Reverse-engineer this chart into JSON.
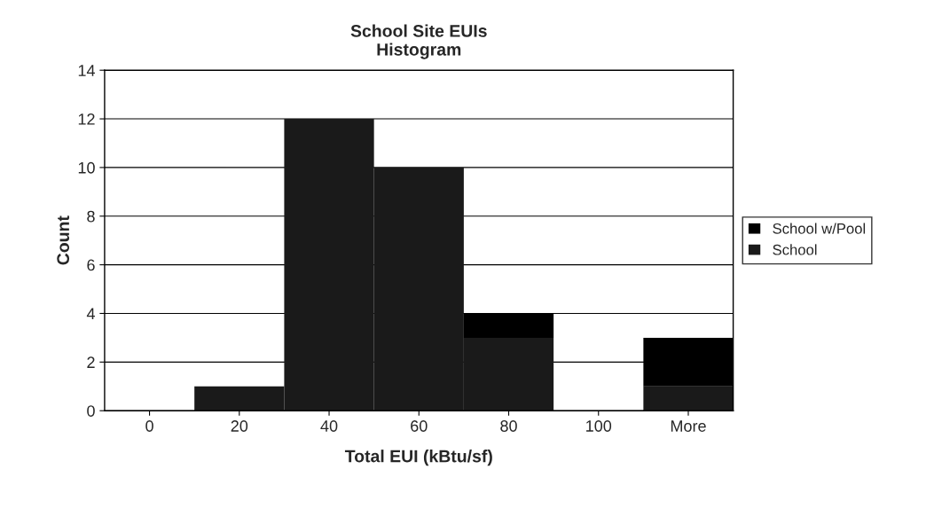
{
  "chart_data": {
    "type": "bar",
    "title": "School Site EUIs\nHistogram",
    "xlabel": "Total EUI (kBtu/sf)",
    "ylabel": "Count",
    "categories": [
      "0",
      "20",
      "40",
      "60",
      "80",
      "100",
      "More"
    ],
    "series": [
      {
        "name": "School",
        "color": "#1a1a1a",
        "values": [
          0,
          1,
          12,
          10,
          3,
          0,
          1
        ]
      },
      {
        "name": "School w/Pool",
        "color": "#000000",
        "values": [
          0,
          0,
          0,
          0,
          1,
          0,
          2
        ]
      }
    ],
    "stacked": true,
    "ylim": [
      0,
      14
    ],
    "yticks": [
      0,
      2,
      4,
      6,
      8,
      10,
      12,
      14
    ],
    "grid": "y",
    "legend": "right"
  }
}
